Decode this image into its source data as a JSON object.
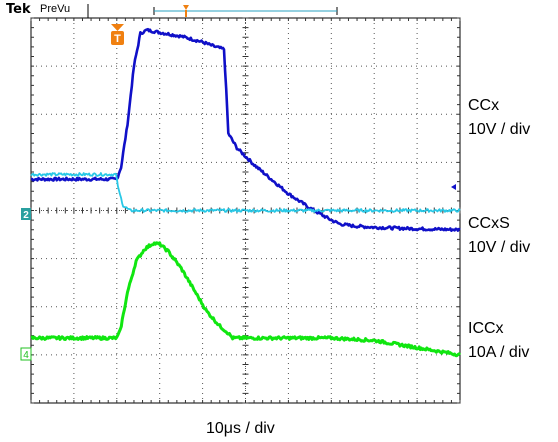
{
  "header": {
    "brand": "Tek",
    "mode": "PreVu"
  },
  "labels": {
    "ccx_name": "CCx",
    "ccx_scale": "10V / div",
    "ccxs_name": "CCxS",
    "ccxs_scale": "10V / div",
    "iccx_name": "ICCx",
    "iccx_scale": "10A / div",
    "time_scale": "10μs / div"
  },
  "markers": {
    "trigger": "T",
    "ch2": "2",
    "ch4": "4"
  },
  "colors": {
    "ccx": "#1010c8",
    "ccxs": "#28c8e6",
    "iccx": "#10e610",
    "marker_orange": "#f08010",
    "ch2_marker": "#2aa0a0",
    "ch4_marker": "#20c020",
    "grid": "#555555"
  },
  "chart_data": {
    "type": "line",
    "grid": {
      "divisions_x": 10,
      "divisions_y": 8,
      "minor_ticks": 5
    },
    "x_axis": {
      "label": "10μs / div",
      "range_div": [
        0,
        10
      ]
    },
    "series": [
      {
        "name": "CCx",
        "scale": "10V / div",
        "x": [
          0,
          2.0,
          2.1,
          2.25,
          2.4,
          2.55,
          2.7,
          3.0,
          3.5,
          4.0,
          4.3,
          4.5,
          4.55,
          4.6,
          4.8,
          5.2,
          5.6,
          6.0,
          6.5,
          7.0,
          7.2,
          7.5,
          8.0,
          9.0,
          10
        ],
        "y_div": [
          4.65,
          4.65,
          4.9,
          5.8,
          7.0,
          7.68,
          7.75,
          7.7,
          7.62,
          7.5,
          7.4,
          7.35,
          6.5,
          5.6,
          5.3,
          4.95,
          4.65,
          4.35,
          4.05,
          3.8,
          3.72,
          3.68,
          3.65,
          3.62,
          3.6
        ]
      },
      {
        "name": "CCxS",
        "scale": "10V / div",
        "x": [
          0,
          1.98,
          2.05,
          2.15,
          2.3,
          10
        ],
        "y_div": [
          4.75,
          4.75,
          4.4,
          4.1,
          4.0,
          4.0
        ]
      },
      {
        "name": "ICCx",
        "scale": "10A / div",
        "x": [
          0,
          2.0,
          2.08,
          2.25,
          2.45,
          2.65,
          2.85,
          3.0,
          3.2,
          3.5,
          3.8,
          4.1,
          4.4,
          4.6,
          4.7,
          7.0,
          8.0,
          9.0,
          10
        ],
        "y_div": [
          1.35,
          1.35,
          1.5,
          2.3,
          2.95,
          3.2,
          3.32,
          3.3,
          3.15,
          2.8,
          2.35,
          1.9,
          1.6,
          1.45,
          1.35,
          1.35,
          1.3,
          1.15,
          1.0
        ]
      }
    ]
  }
}
